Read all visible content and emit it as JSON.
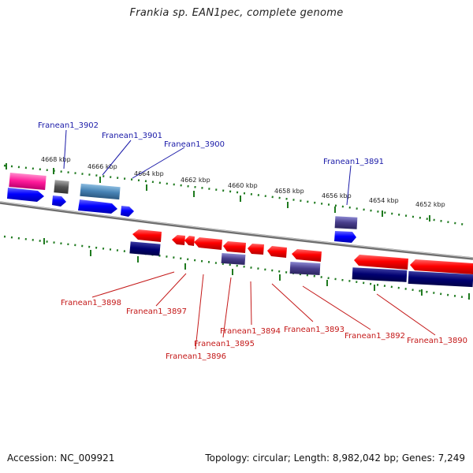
{
  "title": "Frankia sp. EAN1pec, complete genome",
  "footer": {
    "accession": "Accession: NC_009921",
    "summary": "Topology: circular; Length: 8,982,042 bp; Genes: 7,249"
  },
  "scale_labels": [
    "4668 kbp",
    "4666 kbp",
    "4664 kbp",
    "4662 kbp",
    "4660 kbp",
    "4658 kbp",
    "4656 kbp",
    "4654 kbp",
    "4652 kbp"
  ],
  "genes_top": [
    "Franean1_3902",
    "Franean1_3901",
    "Franean1_3900",
    "Franean1_3891"
  ],
  "genes_bottom": [
    "Franean1_3898",
    "Franean1_3897",
    "Franean1_3896",
    "Franean1_3895",
    "Franean1_3894",
    "Franean1_3893",
    "Franean1_3892",
    "Franean1_3890"
  ],
  "colors": {
    "label_top": "#1a1aa8",
    "label_bottom": "#c41818",
    "scale": "#1f7a1f",
    "backbone": "#8a8a8a"
  }
}
